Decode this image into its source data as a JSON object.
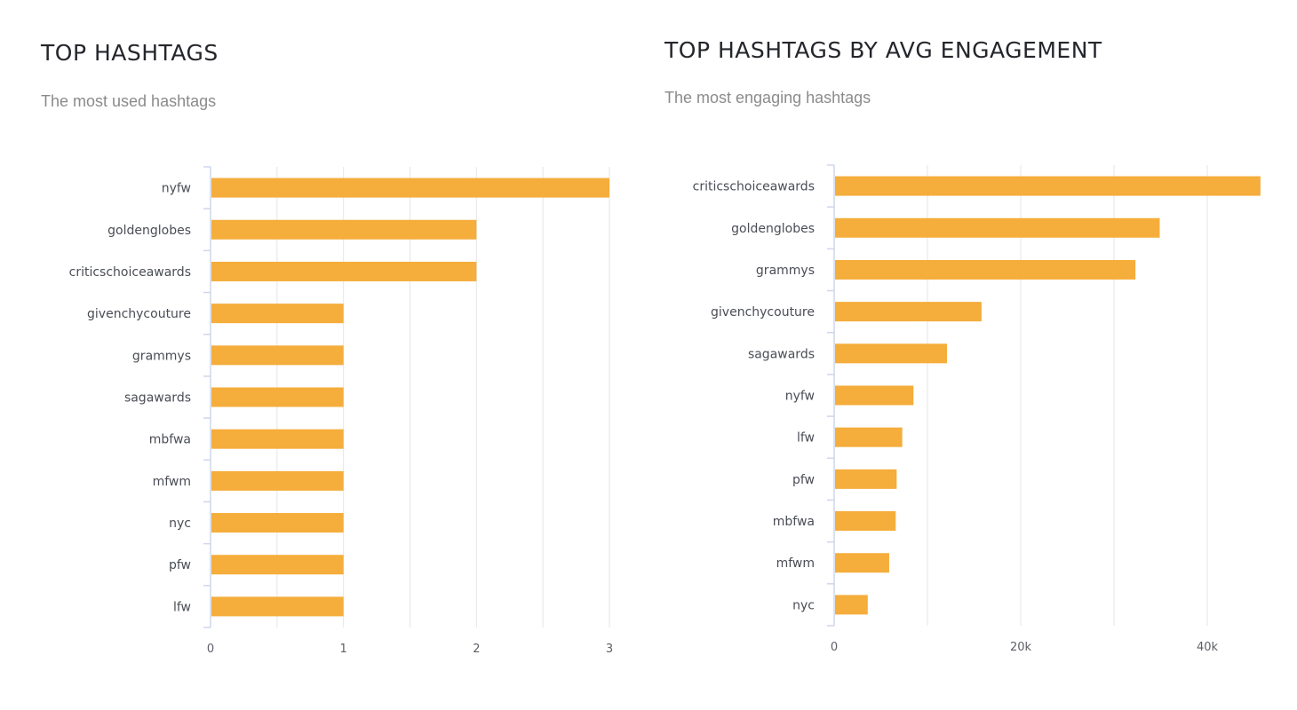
{
  "colors": {
    "bar": "#f5ad3b",
    "grid": "#e6e6e6",
    "axis": "#cdd7ec",
    "title": "#24262b",
    "subtitle": "#8b8b8b"
  },
  "chart_data": [
    {
      "type": "bar",
      "orientation": "horizontal",
      "title": "TOP HASHTAGS",
      "subtitle": "The most used hashtags",
      "categories": [
        "nyfw",
        "goldenglobes",
        "criticschoiceawards",
        "givenchycouture",
        "grammys",
        "sagawards",
        "mbfwa",
        "mfwm",
        "nyc",
        "pfw",
        "lfw"
      ],
      "values": [
        3,
        2,
        2,
        1,
        1,
        1,
        1,
        1,
        1,
        1,
        1
      ],
      "xlim": [
        0,
        3
      ],
      "xticks": [
        0,
        1,
        2,
        3
      ],
      "xtick_labels": [
        "0",
        "1",
        "2",
        "3"
      ],
      "minor_gridlines": [
        0.5,
        1.5,
        2.5
      ],
      "xlabel": "",
      "ylabel": "",
      "grid": true,
      "legend": "none"
    },
    {
      "type": "bar",
      "orientation": "horizontal",
      "title": "TOP HASHTAGS BY AVG ENGAGEMENT",
      "subtitle": "The most engaging hashtags",
      "categories": [
        "criticschoiceawards",
        "goldenglobes",
        "grammys",
        "givenchycouture",
        "sagawards",
        "nyfw",
        "lfw",
        "pfw",
        "mbfwa",
        "mfwm",
        "nyc"
      ],
      "values": [
        45700,
        34900,
        32300,
        15800,
        12100,
        8500,
        7300,
        6700,
        6600,
        5900,
        3600
      ],
      "xlim": [
        0,
        46000
      ],
      "xticks": [
        0,
        20000,
        40000
      ],
      "xtick_labels": [
        "0",
        "20k",
        "40k"
      ],
      "minor_gridlines": [
        10000,
        30000
      ],
      "xlabel": "",
      "ylabel": "",
      "grid": true,
      "legend": "none"
    }
  ]
}
